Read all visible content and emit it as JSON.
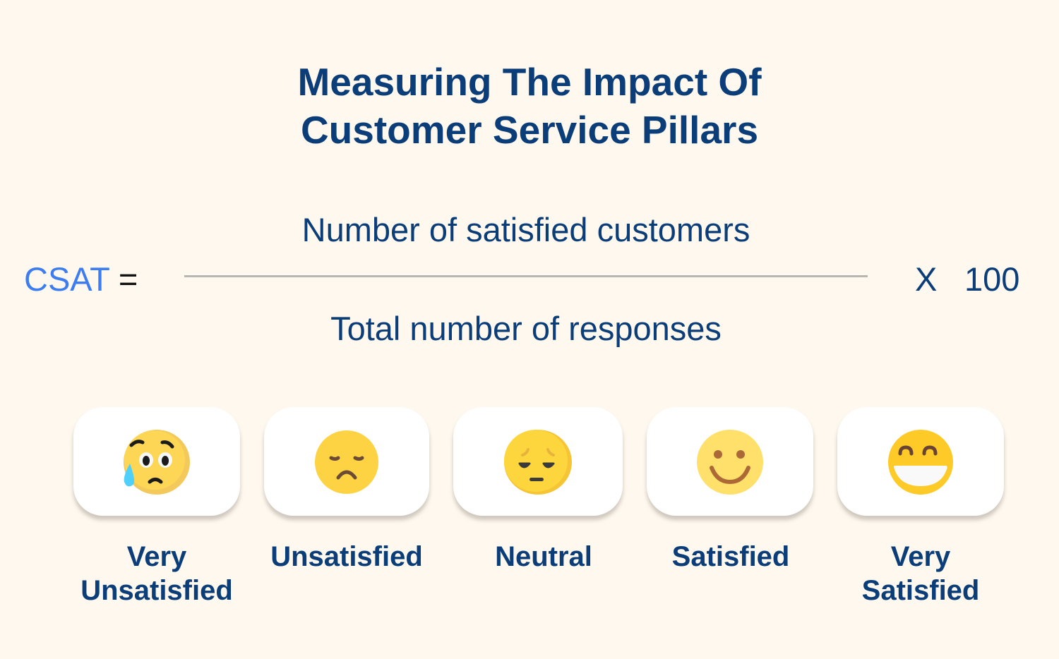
{
  "title": {
    "line1": "Measuring The Impact Of",
    "line2": "Customer Service Pillars"
  },
  "formula": {
    "lhs": "CSAT",
    "equals": "=",
    "numerator": "Number of satisfied customers",
    "denominator": "Total number of responses",
    "times": "X",
    "multiplier": "100"
  },
  "colors": {
    "text": "#0b3d78",
    "accent": "#3c7df2",
    "background": "#fef8ee"
  },
  "scale": [
    {
      "label_line1": "Very",
      "label_line2": "Unsatisfied",
      "icon": "anxious-tear-face-icon"
    },
    {
      "label_line1": "Unsatisfied",
      "label_line2": "",
      "icon": "frowning-face-icon"
    },
    {
      "label_line1": "Neutral",
      "label_line2": "",
      "icon": "pensive-face-icon"
    },
    {
      "label_line1": "Satisfied",
      "label_line2": "",
      "icon": "smiling-face-icon"
    },
    {
      "label_line1": "Very",
      "label_line2": "Satisfied",
      "icon": "grinning-face-icon"
    }
  ]
}
